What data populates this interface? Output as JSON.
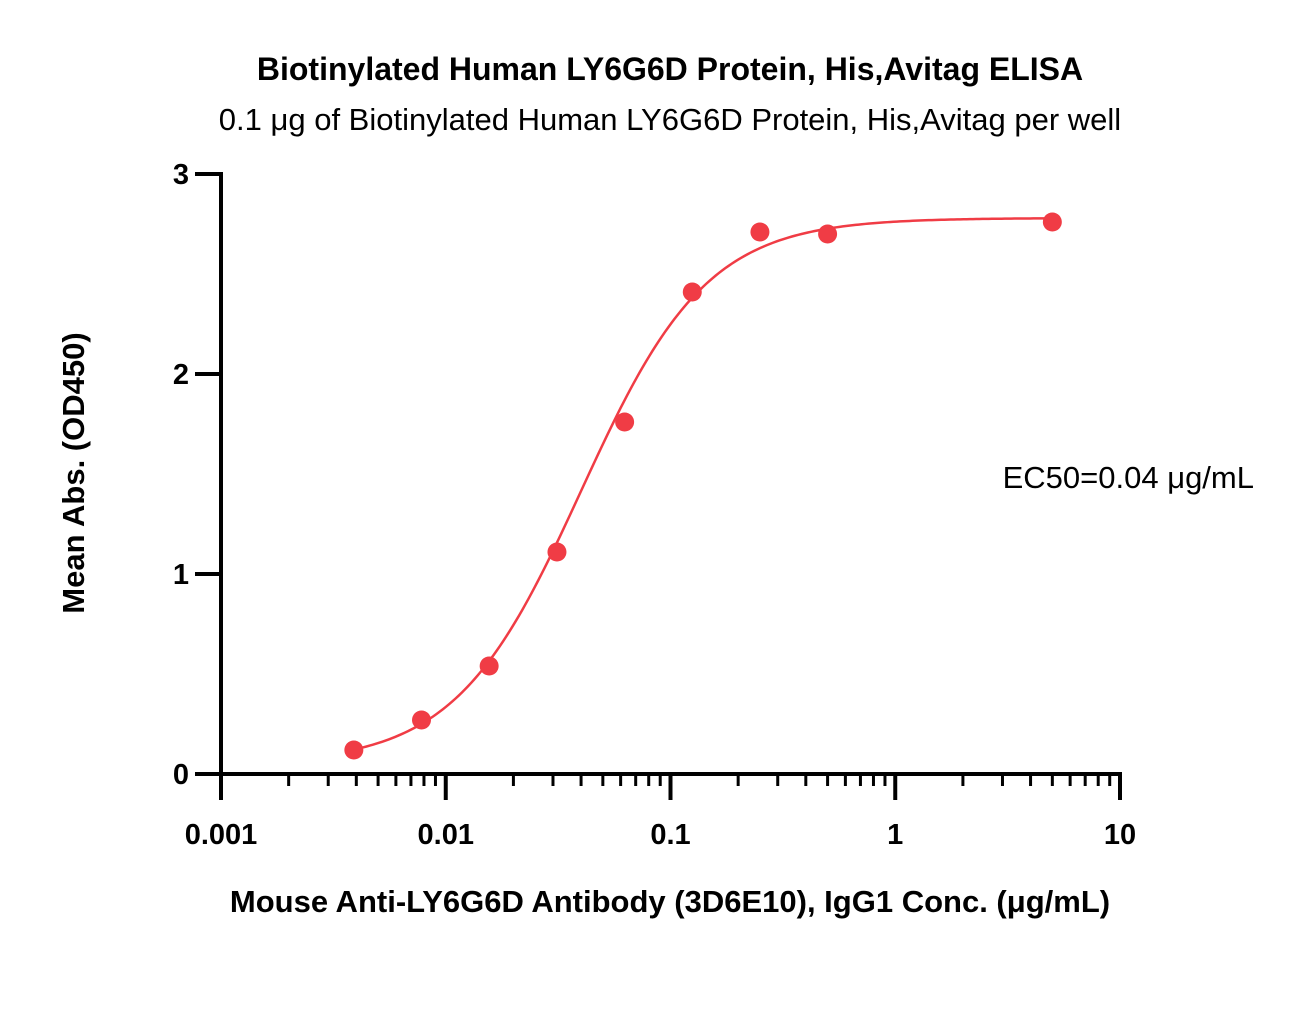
{
  "chart_data": {
    "type": "scatter",
    "title": "Biotinylated Human LY6G6D Protein, His,Avitag ELISA",
    "subtitle": "0.1 μg of Biotinylated Human LY6G6D Protein, His,Avitag per well",
    "xlabel": "Mouse Anti-LY6G6D Antibody (3D6E10), IgG1 Conc. (μg/mL)",
    "ylabel": "Mean Abs. (OD450)",
    "x_scale": "log",
    "xlim": [
      0.001,
      10
    ],
    "ylim": [
      0,
      3
    ],
    "x_ticks": [
      {
        "value": 0.001,
        "label": "0.001"
      },
      {
        "value": 0.01,
        "label": "0.01"
      },
      {
        "value": 0.1,
        "label": "0.1"
      },
      {
        "value": 1,
        "label": "1"
      },
      {
        "value": 10,
        "label": "10"
      }
    ],
    "y_ticks": [
      {
        "value": 0,
        "label": "0"
      },
      {
        "value": 1,
        "label": "1"
      },
      {
        "value": 2,
        "label": "2"
      },
      {
        "value": 3,
        "label": "3"
      }
    ],
    "grid": false,
    "legend": "none",
    "series": [
      {
        "color": "#f03c45",
        "points": [
          {
            "x": 0.0039,
            "y": 0.12
          },
          {
            "x": 0.0078,
            "y": 0.27
          },
          {
            "x": 0.0156,
            "y": 0.54
          },
          {
            "x": 0.03125,
            "y": 1.11
          },
          {
            "x": 0.0625,
            "y": 1.76
          },
          {
            "x": 0.125,
            "y": 2.41
          },
          {
            "x": 0.25,
            "y": 2.71
          },
          {
            "x": 0.5,
            "y": 2.7
          },
          {
            "x": 5,
            "y": 2.76
          }
        ],
        "fit": {
          "model": "4PL",
          "bottom": 0.05,
          "top": 2.78,
          "ec50": 0.04,
          "hill": 1.55
        }
      }
    ],
    "annotations": [
      {
        "text": "EC50=0.04 μg/mL"
      }
    ]
  }
}
